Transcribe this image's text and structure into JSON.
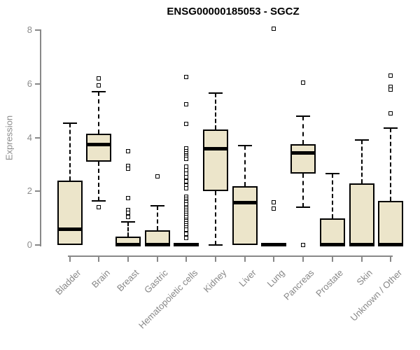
{
  "chart_data": {
    "type": "boxplot",
    "title": "ENSG00000185053 - SGCZ",
    "ylabel": "Expression",
    "xlabel": "",
    "ylim": [
      0,
      8.3
    ],
    "yticks": [
      0,
      2,
      4,
      6,
      8
    ],
    "grid": false,
    "legend": "none",
    "colors": {
      "box_fill": "#ece5ca",
      "box_border": "#000000",
      "median": "#000000",
      "axis": "#888888",
      "tick_label": "#8b8b8b",
      "title": "#000000"
    },
    "categories": [
      "Bladder",
      "Brain",
      "Breast",
      "Gastric",
      "Hematopoietic cells",
      "Kidney",
      "Liver",
      "Lung",
      "Pancreas",
      "Prostate",
      "Skin",
      "Unknown / Other"
    ],
    "boxes": [
      {
        "category": "Bladder",
        "low": 0,
        "q1": 0,
        "median": 0.6,
        "q3": 2.4,
        "high": 4.55,
        "outliers": []
      },
      {
        "category": "Brain",
        "low": 1.65,
        "q1": 3.1,
        "median": 3.75,
        "q3": 4.15,
        "high": 5.7,
        "outliers": [
          6.2,
          5.95,
          1.4
        ]
      },
      {
        "category": "Breast",
        "low": 0,
        "q1": 0,
        "median": 0.02,
        "q3": 0.3,
        "high": 0.85,
        "outliers": [
          3.5,
          2.95,
          2.85,
          1.75,
          1.3,
          1.2,
          1.05
        ]
      },
      {
        "category": "Gastric",
        "low": 0,
        "q1": 0,
        "median": 0.02,
        "q3": 0.55,
        "high": 1.45,
        "outliers": [
          2.55
        ]
      },
      {
        "category": "Hematopoietic cells",
        "low": 0,
        "q1": 0,
        "median": 0.02,
        "q3": 0.05,
        "high": 0.05,
        "outliers": [
          6.25,
          5.25,
          4.5,
          3.6,
          3.5,
          3.42,
          3.35,
          3.28,
          3.2,
          2.92,
          2.78,
          2.65,
          2.52,
          2.38,
          2.22,
          2.1,
          1.8,
          1.72,
          1.65,
          1.58,
          1.5,
          1.42,
          1.35,
          1.28,
          1.2,
          1.12,
          1.05,
          0.95,
          0.88,
          0.8,
          0.72,
          0.65,
          0.58,
          0.42,
          0.25
        ]
      },
      {
        "category": "Kidney",
        "low": 0,
        "q1": 2.0,
        "median": 3.6,
        "q3": 4.3,
        "high": 5.65,
        "outliers": []
      },
      {
        "category": "Liver",
        "low": 0,
        "q1": 0,
        "median": 1.6,
        "q3": 2.2,
        "high": 3.7,
        "outliers": []
      },
      {
        "category": "Lung",
        "low": 0,
        "q1": 0,
        "median": 0.02,
        "q3": 0.05,
        "high": 0.05,
        "outliers": [
          8.05,
          1.6,
          1.35
        ]
      },
      {
        "category": "Pancreas",
        "low": 1.4,
        "q1": 2.65,
        "median": 3.45,
        "q3": 3.75,
        "high": 4.8,
        "outliers": [
          6.05,
          0
        ]
      },
      {
        "category": "Prostate",
        "low": 0,
        "q1": 0,
        "median": 0.02,
        "q3": 1.0,
        "high": 2.65,
        "outliers": []
      },
      {
        "category": "Skin",
        "low": 0,
        "q1": 0,
        "median": 0.02,
        "q3": 2.3,
        "high": 3.9,
        "outliers": []
      },
      {
        "category": "Unknown / Other",
        "low": 0,
        "q1": 0,
        "median": 0.02,
        "q3": 1.65,
        "high": 4.35,
        "outliers": [
          6.3,
          5.9,
          5.8,
          4.9
        ]
      }
    ]
  }
}
